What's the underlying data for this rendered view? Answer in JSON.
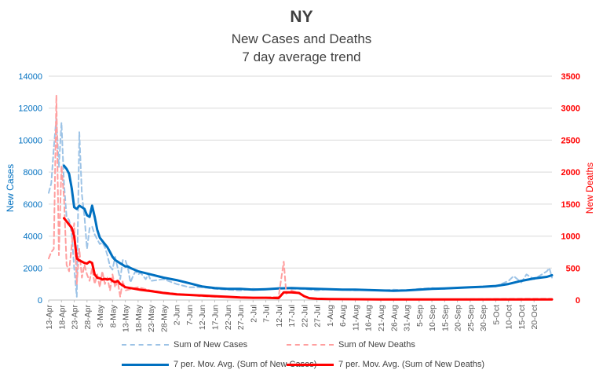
{
  "title": "NY",
  "subtitle1": "New Cases and Deaths",
  "subtitle2": "7 day average trend",
  "colors": {
    "cases": "#0070c0",
    "cases_raw": "#9dc3e6",
    "deaths": "#ff0000",
    "deaths_raw": "#ff9f9f",
    "grid": "#d9d9d9",
    "axis_text": "#595959"
  },
  "legend": [
    {
      "label": "Sum of New Cases",
      "style": "dash-blue"
    },
    {
      "label": "Sum of New Deaths",
      "style": "dash-red"
    },
    {
      "label": "7 per. Mov. Avg. (Sum of New Cases)",
      "style": "solid-blue"
    },
    {
      "label": "7 per. Mov. Avg. (Sum of New Deaths)",
      "style": "solid-red"
    }
  ],
  "chart_data": {
    "type": "line",
    "title": "NY",
    "subtitle": [
      "New Cases and Deaths",
      "7 day average trend"
    ],
    "ylabel_left": "New Cases",
    "ylabel_right": "New Deaths",
    "ylim_left": [
      0,
      14000
    ],
    "ylim_right": [
      0,
      3500
    ],
    "yticks_left": [
      "0",
      "2000",
      "4000",
      "6000",
      "8000",
      "10000",
      "12000",
      "14000"
    ],
    "yticks_right": [
      "0",
      "500",
      "1000",
      "1500",
      "2000",
      "2500",
      "3000",
      "3500"
    ],
    "grid": true,
    "legend_position": "bottom",
    "x_start": "13-Apr",
    "x_days": 197,
    "tick_labels": [
      "13-Apr",
      "18-Apr",
      "23-Apr",
      "28-Apr",
      "3-May",
      "8-May",
      "13-May",
      "18-May",
      "23-May",
      "28-May",
      "2-Jun",
      "7-Jun",
      "12-Jun",
      "17-Jun",
      "22-Jun",
      "27-Jun",
      "2-Jul",
      "7-Jul",
      "12-Jul",
      "17-Jul",
      "22-Jul",
      "27-Jul",
      "1-Aug",
      "6-Aug",
      "11-Aug",
      "16-Aug",
      "21-Aug",
      "26-Aug",
      "31-Aug",
      "5-Sep",
      "10-Sep",
      "15-Sep",
      "20-Sep",
      "25-Sep",
      "30-Sep",
      "5-Oct",
      "10-Oct",
      "15-Oct",
      "20-Oct"
    ],
    "series": [
      {
        "name": "Sum of New Cases",
        "axis": "left",
        "style": "dashed",
        "points": [
          [
            0,
            6700
          ],
          [
            1,
            7300
          ],
          [
            2,
            9500
          ],
          [
            3,
            11400
          ],
          [
            4,
            8300
          ],
          [
            5,
            11100
          ],
          [
            6,
            7300
          ],
          [
            7,
            5200
          ],
          [
            8,
            5000
          ],
          [
            9,
            4200
          ],
          [
            10,
            2000
          ],
          [
            11,
            200
          ],
          [
            12,
            10500
          ],
          [
            13,
            6600
          ],
          [
            14,
            5200
          ],
          [
            15,
            3200
          ],
          [
            16,
            4500
          ],
          [
            17,
            4600
          ],
          [
            18,
            4100
          ],
          [
            19,
            3800
          ],
          [
            20,
            3500
          ],
          [
            21,
            3600
          ],
          [
            22,
            3300
          ],
          [
            23,
            2800
          ],
          [
            24,
            2100
          ],
          [
            25,
            1900
          ],
          [
            26,
            2700
          ],
          [
            27,
            2000
          ],
          [
            28,
            1300
          ],
          [
            29,
            2500
          ],
          [
            30,
            2500
          ],
          [
            31,
            2000
          ],
          [
            32,
            1100
          ],
          [
            33,
            1500
          ],
          [
            34,
            1800
          ],
          [
            35,
            1600
          ],
          [
            36,
            1700
          ],
          [
            37,
            1500
          ],
          [
            38,
            1300
          ],
          [
            39,
            1600
          ],
          [
            40,
            1200
          ],
          [
            45,
            1300
          ],
          [
            50,
            1000
          ],
          [
            55,
            800
          ],
          [
            60,
            800
          ],
          [
            65,
            700
          ],
          [
            70,
            650
          ],
          [
            75,
            600
          ],
          [
            80,
            700
          ],
          [
            85,
            650
          ],
          [
            90,
            750
          ],
          [
            95,
            700
          ],
          [
            100,
            700
          ],
          [
            105,
            600
          ],
          [
            110,
            700
          ],
          [
            115,
            650
          ],
          [
            120,
            600
          ],
          [
            125,
            650
          ],
          [
            130,
            600
          ],
          [
            135,
            650
          ],
          [
            140,
            600
          ],
          [
            145,
            700
          ],
          [
            150,
            750
          ],
          [
            155,
            700
          ],
          [
            160,
            750
          ],
          [
            165,
            800
          ],
          [
            170,
            850
          ],
          [
            175,
            850
          ],
          [
            180,
            1200
          ],
          [
            182,
            1500
          ],
          [
            185,
            1100
          ],
          [
            187,
            1600
          ],
          [
            190,
            1300
          ],
          [
            192,
            1500
          ],
          [
            195,
            1800
          ],
          [
            196,
            2000
          ],
          [
            197,
            1400
          ]
        ]
      },
      {
        "name": "7 per. Mov. Avg. (Sum of New Cases)",
        "axis": "left",
        "style": "solid",
        "points": [
          [
            6,
            8400
          ],
          [
            7,
            8200
          ],
          [
            8,
            7900
          ],
          [
            9,
            7000
          ],
          [
            10,
            5800
          ],
          [
            11,
            5700
          ],
          [
            12,
            5900
          ],
          [
            13,
            5800
          ],
          [
            14,
            5700
          ],
          [
            15,
            5300
          ],
          [
            16,
            5200
          ],
          [
            17,
            5900
          ],
          [
            18,
            5200
          ],
          [
            19,
            4400
          ],
          [
            20,
            3900
          ],
          [
            21,
            3700
          ],
          [
            22,
            3500
          ],
          [
            23,
            3300
          ],
          [
            24,
            3000
          ],
          [
            25,
            2700
          ],
          [
            26,
            2500
          ],
          [
            27,
            2400
          ],
          [
            28,
            2300
          ],
          [
            29,
            2200
          ],
          [
            30,
            2100
          ],
          [
            31,
            2100
          ],
          [
            32,
            2000
          ],
          [
            35,
            1800
          ],
          [
            40,
            1600
          ],
          [
            45,
            1400
          ],
          [
            50,
            1250
          ],
          [
            55,
            1050
          ],
          [
            60,
            850
          ],
          [
            65,
            750
          ],
          [
            70,
            700
          ],
          [
            75,
            700
          ],
          [
            80,
            650
          ],
          [
            85,
            680
          ],
          [
            90,
            720
          ],
          [
            95,
            750
          ],
          [
            100,
            720
          ],
          [
            105,
            700
          ],
          [
            110,
            680
          ],
          [
            115,
            650
          ],
          [
            120,
            650
          ],
          [
            125,
            630
          ],
          [
            130,
            600
          ],
          [
            135,
            580
          ],
          [
            140,
            600
          ],
          [
            145,
            650
          ],
          [
            150,
            700
          ],
          [
            155,
            720
          ],
          [
            160,
            760
          ],
          [
            165,
            800
          ],
          [
            170,
            830
          ],
          [
            175,
            880
          ],
          [
            180,
            1000
          ],
          [
            185,
            1200
          ],
          [
            190,
            1350
          ],
          [
            195,
            1450
          ],
          [
            197,
            1550
          ]
        ]
      },
      {
        "name": "Sum of New Deaths",
        "axis": "right",
        "style": "dashed",
        "points": [
          [
            0,
            650
          ],
          [
            1,
            750
          ],
          [
            2,
            800
          ],
          [
            3,
            3200
          ],
          [
            4,
            700
          ],
          [
            5,
            2100
          ],
          [
            6,
            1600
          ],
          [
            7,
            550
          ],
          [
            8,
            450
          ],
          [
            9,
            850
          ],
          [
            10,
            1200
          ],
          [
            11,
            250
          ],
          [
            12,
            800
          ],
          [
            13,
            350
          ],
          [
            14,
            550
          ],
          [
            15,
            400
          ],
          [
            16,
            300
          ],
          [
            17,
            500
          ],
          [
            18,
            250
          ],
          [
            19,
            400
          ],
          [
            20,
            200
          ],
          [
            21,
            450
          ],
          [
            22,
            250
          ],
          [
            23,
            350
          ],
          [
            24,
            150
          ],
          [
            25,
            400
          ],
          [
            26,
            200
          ],
          [
            27,
            300
          ],
          [
            28,
            50
          ],
          [
            29,
            300
          ],
          [
            30,
            150
          ],
          [
            35,
            200
          ],
          [
            40,
            150
          ],
          [
            45,
            120
          ],
          [
            50,
            100
          ],
          [
            55,
            80
          ],
          [
            60,
            60
          ],
          [
            65,
            50
          ],
          [
            70,
            50
          ],
          [
            75,
            40
          ],
          [
            80,
            30
          ],
          [
            85,
            40
          ],
          [
            90,
            50
          ],
          [
            92,
            600
          ],
          [
            93,
            100
          ],
          [
            95,
            150
          ],
          [
            97,
            120
          ],
          [
            100,
            60
          ],
          [
            103,
            20
          ],
          [
            110,
            15
          ],
          [
            130,
            10
          ],
          [
            150,
            10
          ],
          [
            170,
            15
          ],
          [
            185,
            20
          ],
          [
            197,
            20
          ]
        ]
      },
      {
        "name": "7 per. Mov. Avg. (Sum of New Deaths)",
        "axis": "right",
        "style": "solid",
        "points": [
          [
            6,
            1280
          ],
          [
            7,
            1230
          ],
          [
            8,
            1180
          ],
          [
            9,
            1130
          ],
          [
            10,
            1000
          ],
          [
            11,
            650
          ],
          [
            12,
            620
          ],
          [
            13,
            600
          ],
          [
            14,
            580
          ],
          [
            15,
            570
          ],
          [
            16,
            600
          ],
          [
            17,
            580
          ],
          [
            18,
            400
          ],
          [
            19,
            350
          ],
          [
            20,
            340
          ],
          [
            21,
            320
          ],
          [
            22,
            330
          ],
          [
            23,
            320
          ],
          [
            24,
            330
          ],
          [
            25,
            300
          ],
          [
            26,
            280
          ],
          [
            27,
            300
          ],
          [
            28,
            250
          ],
          [
            29,
            230
          ],
          [
            30,
            200
          ],
          [
            33,
            180
          ],
          [
            36,
            160
          ],
          [
            40,
            140
          ],
          [
            45,
            110
          ],
          [
            50,
            90
          ],
          [
            55,
            80
          ],
          [
            60,
            70
          ],
          [
            65,
            60
          ],
          [
            70,
            50
          ],
          [
            75,
            40
          ],
          [
            80,
            35
          ],
          [
            85,
            35
          ],
          [
            90,
            30
          ],
          [
            92,
            120
          ],
          [
            95,
            120
          ],
          [
            98,
            110
          ],
          [
            100,
            60
          ],
          [
            102,
            30
          ],
          [
            105,
            20
          ],
          [
            110,
            15
          ],
          [
            130,
            10
          ],
          [
            150,
            10
          ],
          [
            170,
            10
          ],
          [
            190,
            10
          ],
          [
            197,
            10
          ]
        ]
      }
    ]
  }
}
